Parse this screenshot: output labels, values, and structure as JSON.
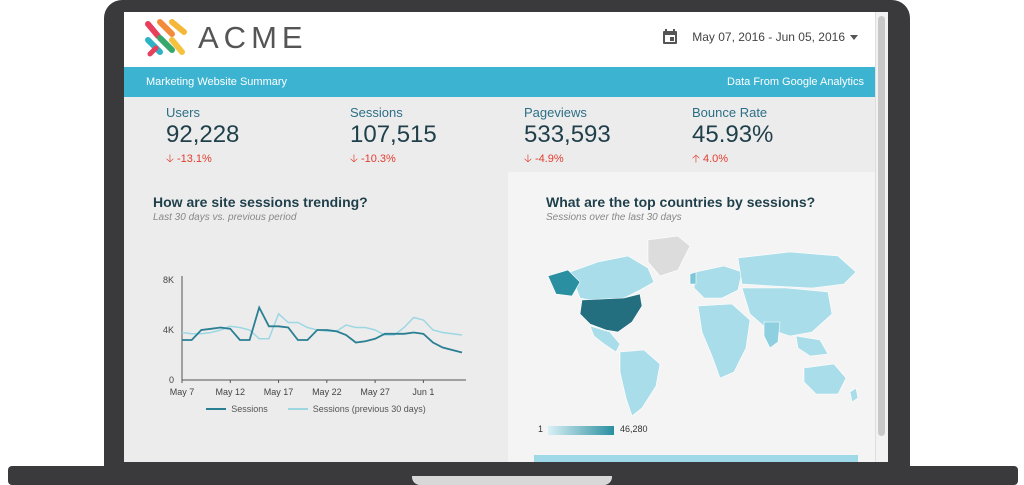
{
  "header": {
    "brand": "ACME",
    "date_range": "May 07, 2016 - Jun 05, 2016"
  },
  "banner": {
    "left": "Marketing Website Summary",
    "right": "Data From Google Analytics"
  },
  "kpis": [
    {
      "label": "Users",
      "value": "92,228",
      "delta": "-13.1%",
      "direction": "down"
    },
    {
      "label": "Sessions",
      "value": "107,515",
      "delta": "-10.3%",
      "direction": "down"
    },
    {
      "label": "Pageviews",
      "value": "533,593",
      "delta": "-4.9%",
      "direction": "down"
    },
    {
      "label": "Bounce Rate",
      "value": "45.93%",
      "delta": "4.0%",
      "direction": "up"
    }
  ],
  "sessions_panel": {
    "title": "How are site sessions trending?",
    "subtitle": "Last 30 days vs. previous period"
  },
  "countries_panel": {
    "title": "What are the top countries by sessions?",
    "subtitle": "Sessions over the last 30 days",
    "legend_min": "1",
    "legend_max": "46,280"
  },
  "colors": {
    "accent": "#3bb3d1",
    "series_current": "#2a7f93",
    "series_previous": "#9dd7e3",
    "negative": "#e33d2f"
  },
  "chart_data": {
    "type": "line",
    "x": [
      "May 7",
      "May 8",
      "May 9",
      "May 10",
      "May 11",
      "May 12",
      "May 13",
      "May 14",
      "May 15",
      "May 16",
      "May 17",
      "May 18",
      "May 19",
      "May 20",
      "May 21",
      "May 22",
      "May 23",
      "May 24",
      "May 25",
      "May 26",
      "May 27",
      "May 28",
      "May 29",
      "May 30",
      "May 31",
      "Jun 1",
      "Jun 2",
      "Jun 3",
      "Jun 4",
      "Jun 5"
    ],
    "x_tick_labels": [
      "May 7",
      "May 12",
      "May 17",
      "May 22",
      "May 27",
      "Jun 1"
    ],
    "y_tick_labels": [
      "8K",
      "4K",
      "0"
    ],
    "ylim": [
      0,
      8000
    ],
    "series": [
      {
        "name": "Sessions",
        "values": [
          3200,
          3200,
          4000,
          4100,
          4200,
          4100,
          3200,
          3200,
          5800,
          4300,
          4300,
          4200,
          3200,
          3200,
          4000,
          4000,
          3900,
          3600,
          3000,
          3100,
          3300,
          3700,
          3700,
          3700,
          3800,
          3700,
          3000,
          2600,
          2400,
          2200
        ]
      },
      {
        "name": "Sessions (previous 30 days)",
        "values": [
          3800,
          3700,
          3700,
          3800,
          4000,
          4300,
          4200,
          4000,
          3300,
          3300,
          5300,
          4600,
          4600,
          4200,
          4000,
          3900,
          3900,
          4400,
          4200,
          4200,
          4000,
          3600,
          3600,
          4200,
          5000,
          4800,
          4000,
          3800,
          3700,
          3600
        ]
      }
    ],
    "legend": "bottom"
  }
}
